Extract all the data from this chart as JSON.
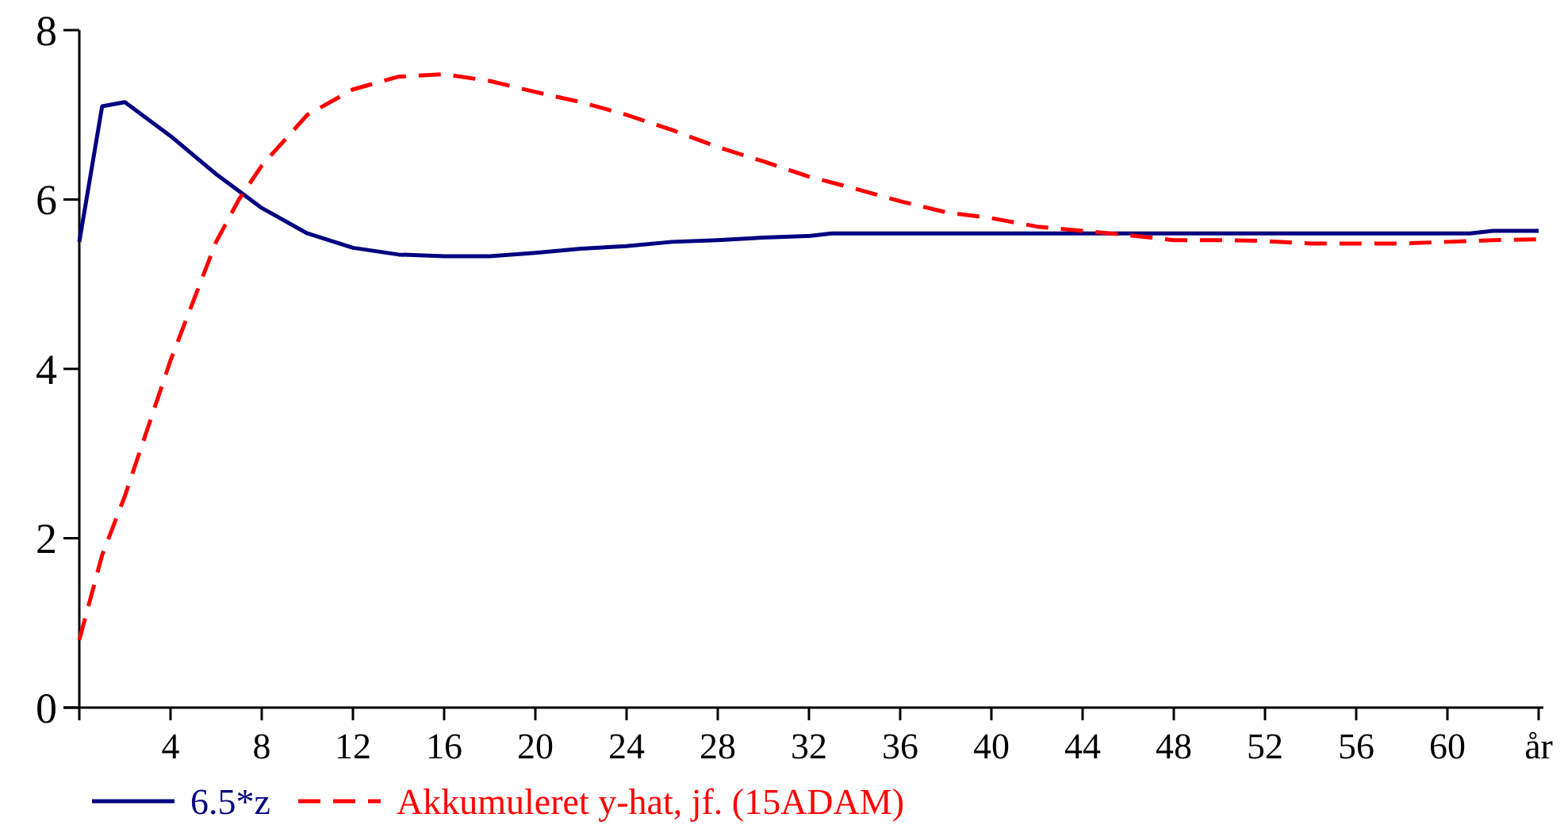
{
  "chart_data": {
    "type": "line",
    "xlim": [
      0,
      64
    ],
    "ylim": [
      0,
      8
    ],
    "xticks": [
      {
        "value": 0,
        "label": null
      },
      4,
      8,
      12,
      16,
      20,
      24,
      28,
      32,
      36,
      40,
      44,
      48,
      52,
      56,
      60,
      {
        "value": 64,
        "label": "år"
      }
    ],
    "yticks": [
      0,
      2,
      4,
      6,
      8
    ],
    "grid": false,
    "legend": "bottom",
    "series": [
      {
        "name": "6.5*z",
        "color": "#000080",
        "line_style": "solid",
        "x": [
          0,
          1,
          2,
          4,
          6,
          8,
          10,
          12,
          14,
          16,
          18,
          20,
          22,
          24,
          26,
          28,
          30,
          32,
          33,
          40,
          50,
          61,
          62,
          64
        ],
        "values": [
          5.5,
          7.1,
          7.15,
          6.75,
          6.3,
          5.9,
          5.6,
          5.43,
          5.35,
          5.33,
          5.33,
          5.37,
          5.42,
          5.45,
          5.5,
          5.52,
          5.55,
          5.57,
          5.6,
          5.6,
          5.6,
          5.6,
          5.63,
          5.63
        ]
      },
      {
        "name": "Akkumuleret y-hat, jf. (15ADAM)",
        "color": "#ff0000",
        "line_style": "dashed",
        "x": [
          0,
          1,
          2,
          3,
          4,
          5,
          6,
          7,
          8,
          10,
          12,
          14,
          16,
          18,
          20,
          22,
          24,
          26,
          28,
          30,
          32,
          34,
          36,
          38,
          40,
          42,
          44,
          46,
          48,
          50,
          52,
          54,
          56,
          58,
          60,
          62,
          64
        ],
        "values": [
          0.8,
          1.8,
          2.5,
          3.3,
          4.1,
          4.8,
          5.5,
          6.0,
          6.4,
          7.0,
          7.3,
          7.45,
          7.48,
          7.4,
          7.27,
          7.15,
          7.0,
          6.82,
          6.62,
          6.45,
          6.27,
          6.13,
          5.98,
          5.85,
          5.78,
          5.68,
          5.63,
          5.58,
          5.52,
          5.52,
          5.51,
          5.48,
          5.48,
          5.48,
          5.5,
          5.52,
          5.53
        ]
      }
    ]
  }
}
